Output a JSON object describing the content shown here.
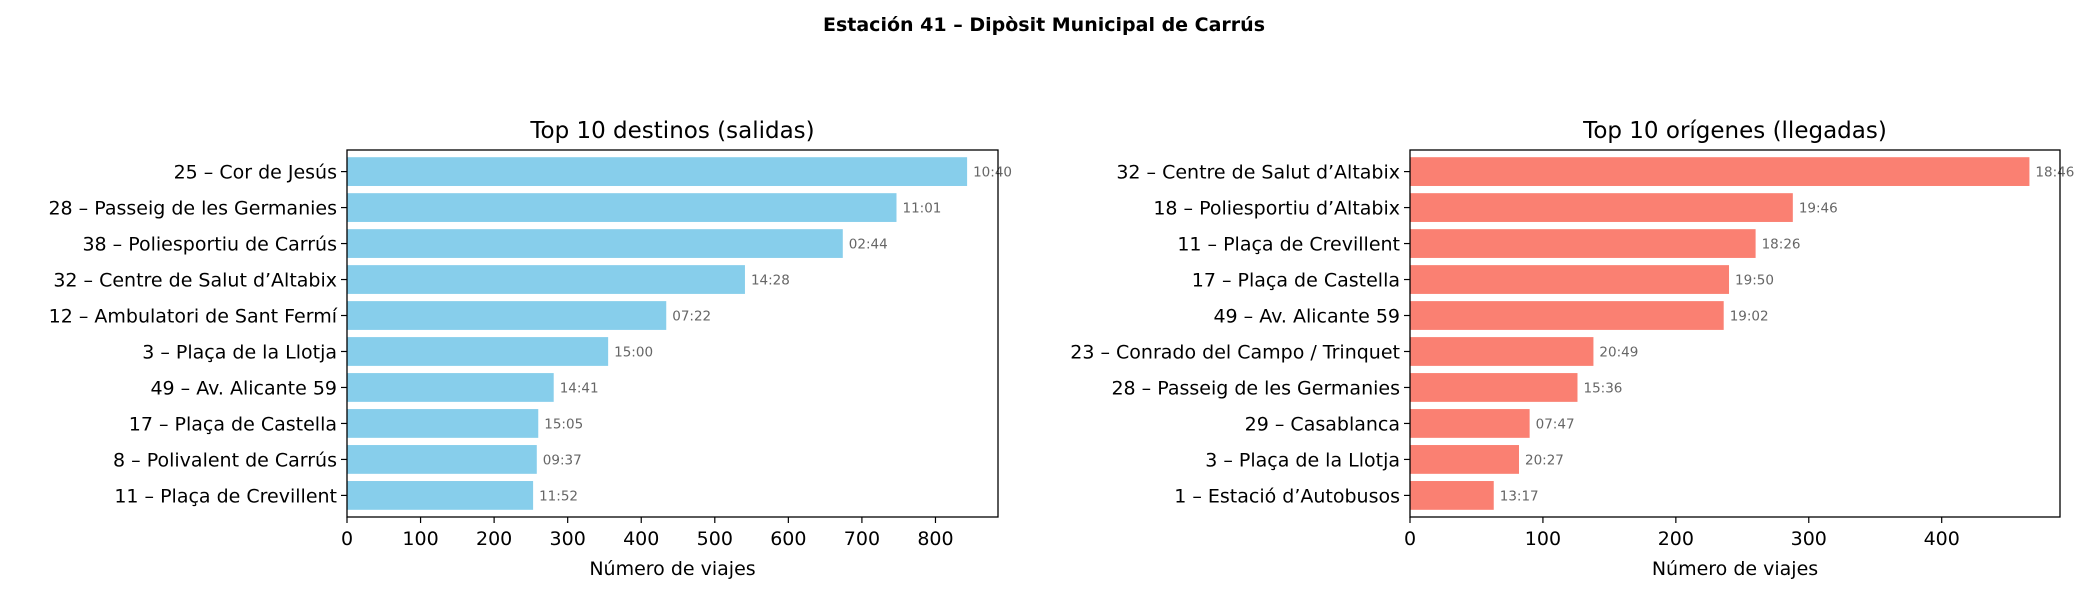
{
  "suptitle": "Estación 41 – Dipòsit Municipal de Carrús",
  "chart_data": [
    {
      "type": "bar",
      "orientation": "horizontal",
      "title": "Top 10 destinos (salidas)",
      "xlabel": "Número de viajes",
      "ylabel": "",
      "xlim": [
        0,
        885
      ],
      "xticks": [
        0,
        100,
        200,
        300,
        400,
        500,
        600,
        700,
        800
      ],
      "bar_color": "#87CEEB",
      "categories": [
        "25 – Cor de Jesús",
        "28 – Passeig de les Germanies",
        "38 – Poliesportiu de Carrús",
        "32 – Centre de Salut d’Altabix",
        "12 – Ambulatori de Sant Fermí",
        "3 – Plaça de la Llotja",
        "49 – Av. Alicante 59",
        "17 – Plaça de Castella",
        "8 – Polivalent de Carrús",
        "11 – Plaça de Crevillent"
      ],
      "values": [
        843,
        747,
        674,
        541,
        434,
        355,
        281,
        260,
        258,
        253
      ],
      "annotations": [
        "10:40",
        "11:01",
        "02:44",
        "14:28",
        "07:22",
        "15:00",
        "14:41",
        "15:05",
        "09:37",
        "11:52"
      ]
    },
    {
      "type": "bar",
      "orientation": "horizontal",
      "title": "Top 10 orígenes (llegadas)",
      "xlabel": "Número de viajes",
      "ylabel": "",
      "xlim": [
        0,
        489
      ],
      "xticks": [
        0,
        100,
        200,
        300,
        400
      ],
      "bar_color": "#FA8072",
      "categories": [
        "32 – Centre de Salut d’Altabix",
        "18 – Poliesportiu d’Altabix",
        "11 – Plaça de Crevillent",
        "17 – Plaça de Castella",
        "49 – Av. Alicante 59",
        "23 – Conrado del Campo / Trinquet",
        "28 – Passeig de les Germanies",
        "29 – Casablanca",
        "3 – Plaça de la Llotja",
        "1 – Estació d’Autobusos"
      ],
      "values": [
        466,
        288,
        260,
        240,
        236,
        138,
        126,
        90,
        82,
        63
      ],
      "annotations": [
        "18:46",
        "19:46",
        "18:26",
        "19:50",
        "19:02",
        "20:49",
        "15:36",
        "07:47",
        "20:27",
        "13:17"
      ]
    }
  ]
}
